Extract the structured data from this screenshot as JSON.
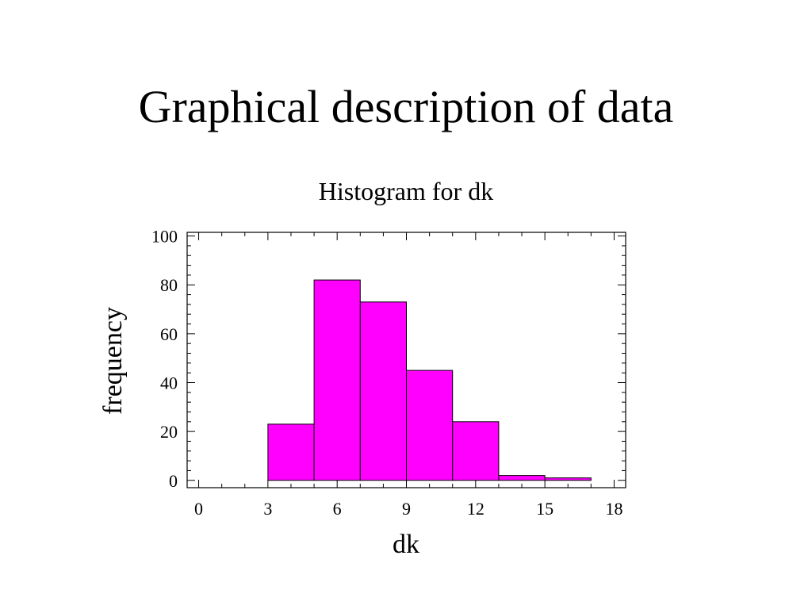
{
  "slide": {
    "title": "Graphical description of data"
  },
  "colors": {
    "bar_fill": "#ff00ff",
    "bar_stroke": "#000000",
    "axis": "#000000"
  },
  "chart_data": {
    "type": "bar",
    "title": "Histogram for dk",
    "xlabel": "dk",
    "ylabel": "frequency",
    "xlim": [
      -0.5,
      18.5
    ],
    "ylim": [
      -3,
      101.5
    ],
    "x_ticks": [
      0,
      3,
      6,
      9,
      12,
      15,
      18
    ],
    "x_tick_labels": [
      "0",
      "3",
      "6",
      "9",
      "12",
      "15",
      "18"
    ],
    "y_ticks": [
      0,
      20,
      40,
      60,
      80,
      100
    ],
    "y_tick_labels": [
      "0",
      "20",
      "40",
      "60",
      "80",
      "100"
    ],
    "bins": [
      {
        "start": 3,
        "end": 5,
        "count": 23
      },
      {
        "start": 5,
        "end": 7,
        "count": 82
      },
      {
        "start": 7,
        "end": 9,
        "count": 73
      },
      {
        "start": 9,
        "end": 11,
        "count": 45
      },
      {
        "start": 11,
        "end": 13,
        "count": 24
      },
      {
        "start": 13,
        "end": 15,
        "count": 2
      },
      {
        "start": 15,
        "end": 17,
        "count": 1
      }
    ],
    "grid": false,
    "legend": "none"
  }
}
